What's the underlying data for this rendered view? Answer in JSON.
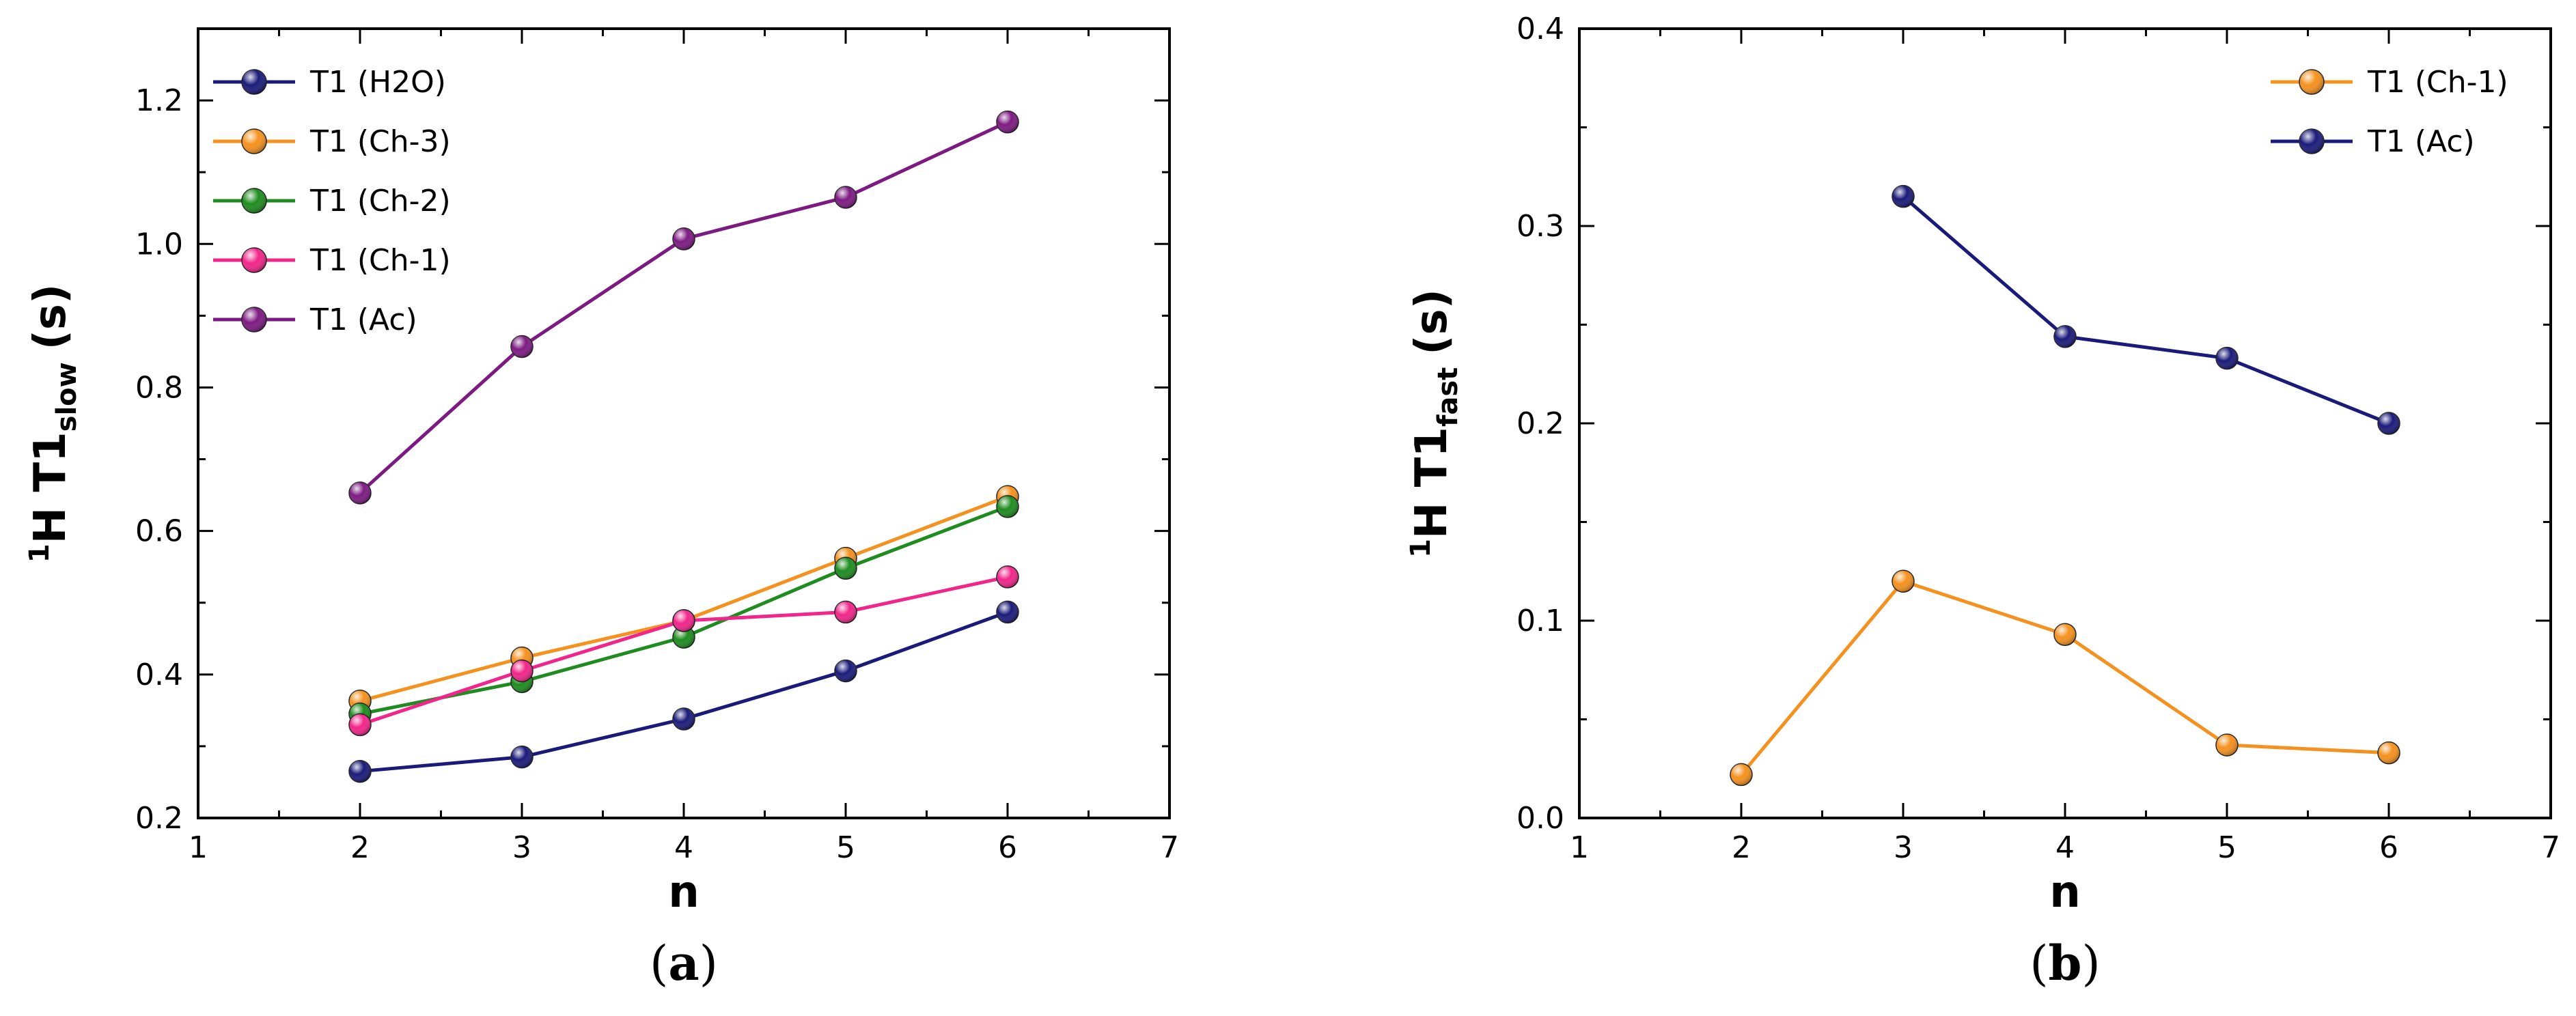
{
  "chart_data": [
    {
      "type": "line",
      "panel": "a",
      "caption_open": "(",
      "caption_letter": "a",
      "caption_close": ")",
      "xlabel": "n",
      "ylabel_sup": "1",
      "ylabel_main": "H T1",
      "ylabel_sub": "slow",
      "ylabel_unit": "(s)",
      "xlim": [
        1,
        7
      ],
      "ylim": [
        0.2,
        1.3
      ],
      "xticks": [
        1,
        2,
        3,
        4,
        5,
        6,
        7
      ],
      "xtick_labels": [
        "1",
        "2",
        "3",
        "4",
        "5",
        "6",
        "7"
      ],
      "yticks": [
        0.2,
        0.4,
        0.6,
        0.8,
        1.0,
        1.2
      ],
      "ytick_labels": [
        "0.2",
        "0.4",
        "0.6",
        "0.8",
        "1.0",
        "1.2"
      ],
      "legend_position": "top-left",
      "series": [
        {
          "name": "T1 (H2O)",
          "color": "#1a1a7a",
          "x": [
            2,
            3,
            4,
            5,
            6
          ],
          "y": [
            0.265,
            0.285,
            0.338,
            0.405,
            0.487
          ]
        },
        {
          "name": "T1 (Ch-3)",
          "color": "#f5911e",
          "x": [
            2,
            3,
            4,
            5,
            6
          ],
          "y": [
            0.363,
            0.423,
            0.475,
            0.562,
            0.648
          ]
        },
        {
          "name": "T1 (Ch-2)",
          "color": "#1e8c1e",
          "x": [
            2,
            3,
            4,
            5,
            6
          ],
          "y": [
            0.345,
            0.39,
            0.452,
            0.548,
            0.634
          ]
        },
        {
          "name": "T1 (Ch-1)",
          "color": "#f2258a",
          "x": [
            2,
            3,
            4,
            5,
            6
          ],
          "y": [
            0.33,
            0.405,
            0.475,
            0.487,
            0.536
          ]
        },
        {
          "name": "T1 (Ac)",
          "color": "#7d1a82",
          "x": [
            2,
            3,
            4,
            5,
            6
          ],
          "y": [
            0.653,
            0.857,
            1.007,
            1.065,
            1.17
          ]
        }
      ]
    },
    {
      "type": "line",
      "panel": "b",
      "caption_open": "(",
      "caption_letter": "b",
      "caption_close": ")",
      "xlabel": "n",
      "ylabel_sup": "1",
      "ylabel_main": "H T1",
      "ylabel_sub": "fast",
      "ylabel_unit": "(s)",
      "xlim": [
        1,
        7
      ],
      "ylim": [
        0.0,
        0.4
      ],
      "xticks": [
        1,
        2,
        3,
        4,
        5,
        6,
        7
      ],
      "xtick_labels": [
        "1",
        "2",
        "3",
        "4",
        "5",
        "6",
        "7"
      ],
      "yticks": [
        0.0,
        0.1,
        0.2,
        0.3,
        0.4
      ],
      "ytick_labels": [
        "0.0",
        "0.1",
        "0.2",
        "0.3",
        "0.4"
      ],
      "legend_position": "top-right",
      "series": [
        {
          "name": "T1 (Ch-1)",
          "color": "#f5911e",
          "x": [
            2,
            3,
            4,
            5,
            6
          ],
          "y": [
            0.022,
            0.12,
            0.093,
            0.037,
            0.033
          ]
        },
        {
          "name": "T1 (Ac)",
          "color": "#1a1a7a",
          "x": [
            3,
            4,
            5,
            6
          ],
          "y": [
            0.315,
            0.244,
            0.233,
            0.2
          ]
        }
      ]
    }
  ]
}
